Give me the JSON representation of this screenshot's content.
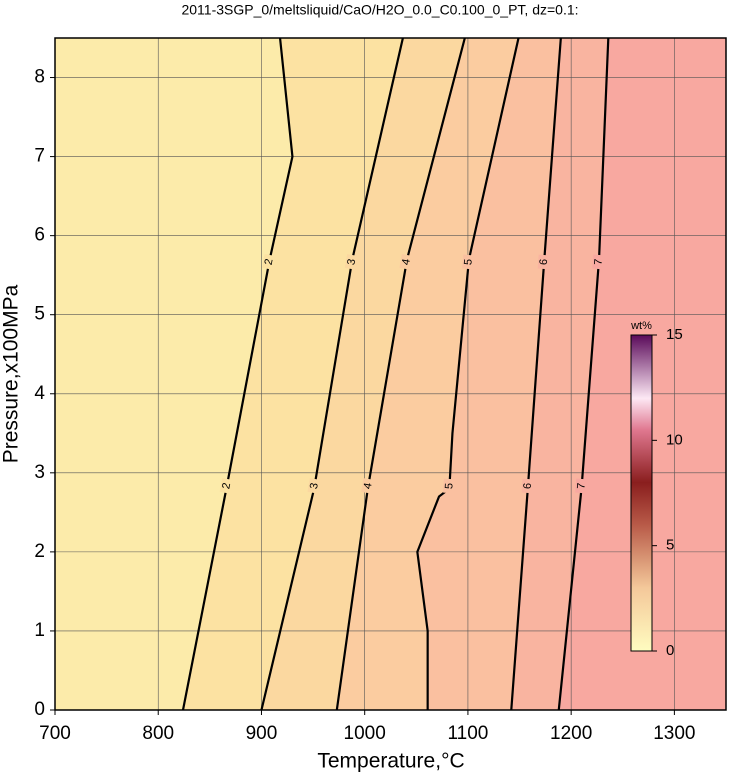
{
  "chart_data": {
    "type": "contour",
    "title": "2011-3SGP_0/meltsliquid/CaO/H2O_0.0_C0.100_0_PT, dz=0.1:",
    "x_label": "Temperature,°C",
    "y_label": "Pressure,x100MPa",
    "xlim": [
      700,
      1350
    ],
    "xticks": [
      700,
      800,
      900,
      1000,
      1100,
      1200,
      1300
    ],
    "ylim": [
      0,
      8.5
    ],
    "yticks": [
      0,
      1,
      2,
      3,
      4,
      5,
      6,
      7,
      8
    ],
    "grid": true,
    "contours": [
      {
        "level": 2,
        "T": [
          824,
          866,
          908,
          930,
          918
        ],
        "P": [
          0,
          2.8,
          5.7,
          7.0,
          8.5
        ]
      },
      {
        "level": 3,
        "T": [
          900,
          951,
          988,
          1037
        ],
        "P": [
          0,
          2.8,
          5.7,
          8.5
        ]
      },
      {
        "level": 4,
        "T": [
          973,
          1003,
          1041,
          1097
        ],
        "P": [
          0,
          2.8,
          5.7,
          8.5
        ]
      },
      {
        "level": 5,
        "T": [
          1061,
          1061,
          1051,
          1072,
          1082,
          1085,
          1101,
          1149
        ],
        "P": [
          0,
          1.0,
          2.0,
          2.7,
          2.8,
          3.5,
          5.7,
          8.5
        ]
      },
      {
        "level": 6,
        "T": [
          1142,
          1158,
          1174,
          1190
        ],
        "P": [
          0,
          2.8,
          5.7,
          8.5
        ]
      },
      {
        "level": 7,
        "T": [
          1188,
          1210,
          1227,
          1236
        ],
        "P": [
          0,
          2.8,
          5.7,
          8.5
        ]
      }
    ],
    "fill_colors": [
      "#fcebaa",
      "#fce2a2",
      "#fbd8a0",
      "#fbcca0",
      "#fac0a0",
      "#f9b4a0",
      "#f8a8a0"
    ],
    "colorbar": {
      "label": "wt%",
      "lim": [
        0,
        15
      ],
      "ticks": [
        0,
        5,
        10,
        15
      ],
      "stops": [
        {
          "value": 0,
          "color": "#fffcc0"
        },
        {
          "value": 3,
          "color": "#f4c89a"
        },
        {
          "value": 6,
          "color": "#b85a48"
        },
        {
          "value": 8,
          "color": "#8a1e1e"
        },
        {
          "value": 10.5,
          "color": "#e07890"
        },
        {
          "value": 12,
          "color": "#fde8f4"
        },
        {
          "value": 15,
          "color": "#5a0a5a"
        }
      ]
    }
  }
}
